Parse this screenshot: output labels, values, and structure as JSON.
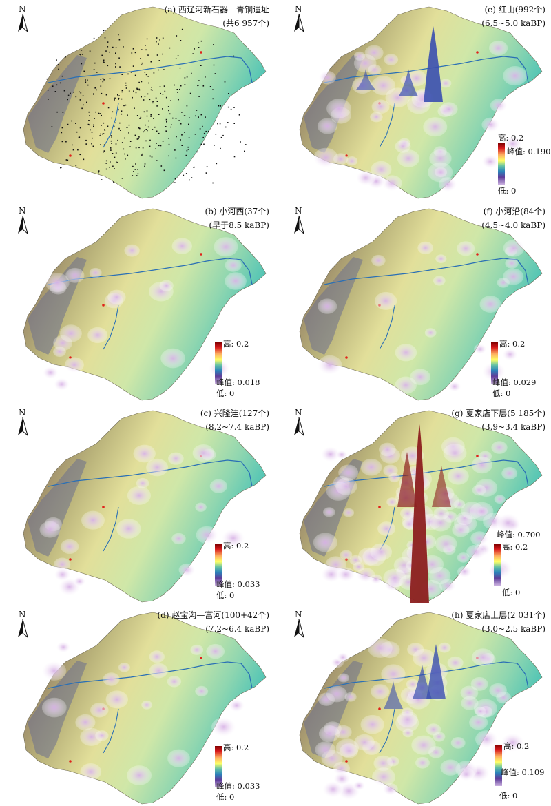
{
  "north_label": "N",
  "panels": [
    {
      "id": "a",
      "title_line1": "(a) 西辽河新石器—青铜遗址",
      "title_line2": "(共6 957个)",
      "legend": null,
      "density": "points"
    },
    {
      "id": "e",
      "title_line1": "(e) 红山(992个)",
      "title_line2": "(6.5~5.0 kaBP)",
      "legend": {
        "high": "高: 0.2",
        "peak": "峰值: 0.190",
        "low": "低: 0"
      },
      "density": "peak-high"
    },
    {
      "id": "b",
      "title_line1": "(b) 小河西(37个)",
      "title_line2": "(早于8.5 kaBP)",
      "legend": {
        "high": "高: 0.2",
        "peak": "峰值: 0.018",
        "low": "低: 0"
      },
      "density": "sparse"
    },
    {
      "id": "f",
      "title_line1": "(f) 小河沿(84个)",
      "title_line2": "(4.5~4.0 kaBP)",
      "legend": {
        "high": "高: 0.2",
        "peak": "峰值: 0.029",
        "low": "低: 0"
      },
      "density": "sparse"
    },
    {
      "id": "c",
      "title_line1": "(c) 兴隆洼(127个)",
      "title_line2": "(8.2~7.4 kaBP)",
      "legend": {
        "high": "高: 0.2",
        "peak": "峰值: 0.033",
        "low": "低: 0"
      },
      "density": "sparse"
    },
    {
      "id": "g",
      "title_line1": "(g) 夏家店下层(5 185个)",
      "title_line2": "(3.9~3.4 kaBP)",
      "legend": {
        "high": "高: 0.2",
        "peak": "峰值: 0.700",
        "low": "低: 0"
      },
      "density": "very-high"
    },
    {
      "id": "d",
      "title_line1": "(d) 赵宝沟—富河(100+42个)",
      "title_line2": "(7.2~6.4 kaBP)",
      "legend": {
        "high": "高: 0.2",
        "peak": "峰值: 0.033",
        "low": "低: 0"
      },
      "density": "sparse"
    },
    {
      "id": "h",
      "title_line1": "(h) 夏家店上层(2 031个)",
      "title_line2": "(3.0~2.5 kaBP)",
      "legend": {
        "high": "高: 0.2",
        "peak": "峰值: 0.109",
        "low": "低: 0"
      },
      "density": "high"
    }
  ]
}
